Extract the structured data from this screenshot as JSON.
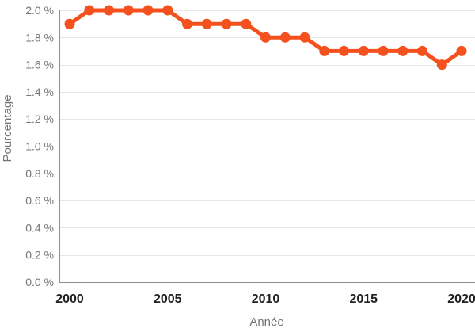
{
  "colors": {
    "background": "#FFFFFF",
    "grid": "#E6E6E6",
    "axis": "#8E8E8E",
    "y_tick_text": "#757575",
    "x_tick_text": "#212121",
    "axis_title_text": "#757575"
  },
  "chart_data": {
    "type": "line",
    "title": "",
    "xlabel": "Année",
    "ylabel": "Pourcentage",
    "line_color": "#F4511E",
    "marker": "circle",
    "grid": true,
    "legend": "none",
    "xlim": [
      2000,
      2020
    ],
    "ylim": [
      0.0,
      2.0
    ],
    "x": [
      2000,
      2001,
      2002,
      2003,
      2004,
      2005,
      2006,
      2007,
      2008,
      2009,
      2010,
      2011,
      2012,
      2013,
      2014,
      2015,
      2016,
      2017,
      2018,
      2019,
      2020
    ],
    "values": [
      1.9,
      2.0,
      2.0,
      2.0,
      2.0,
      2.0,
      1.9,
      1.9,
      1.9,
      1.9,
      1.8,
      1.8,
      1.8,
      1.7,
      1.7,
      1.7,
      1.7,
      1.7,
      1.7,
      1.6,
      1.7
    ],
    "y_ticks": [
      {
        "value": 0.0,
        "label": "0.0 %"
      },
      {
        "value": 0.2,
        "label": "0.2 %"
      },
      {
        "value": 0.4,
        "label": "0.4 %"
      },
      {
        "value": 0.6,
        "label": "0.6 %"
      },
      {
        "value": 0.8,
        "label": "0.8 %"
      },
      {
        "value": 1.0,
        "label": "1.0 %"
      },
      {
        "value": 1.2,
        "label": "1.2 %"
      },
      {
        "value": 1.4,
        "label": "1.4 %"
      },
      {
        "value": 1.6,
        "label": "1.6 %"
      },
      {
        "value": 1.8,
        "label": "1.8 %"
      },
      {
        "value": 2.0,
        "label": "2.0 %"
      }
    ],
    "x_ticks": [
      {
        "value": 2000,
        "label": "2000"
      },
      {
        "value": 2005,
        "label": "2005"
      },
      {
        "value": 2010,
        "label": "2010"
      },
      {
        "value": 2015,
        "label": "2015"
      },
      {
        "value": 2020,
        "label": "2020"
      }
    ]
  }
}
